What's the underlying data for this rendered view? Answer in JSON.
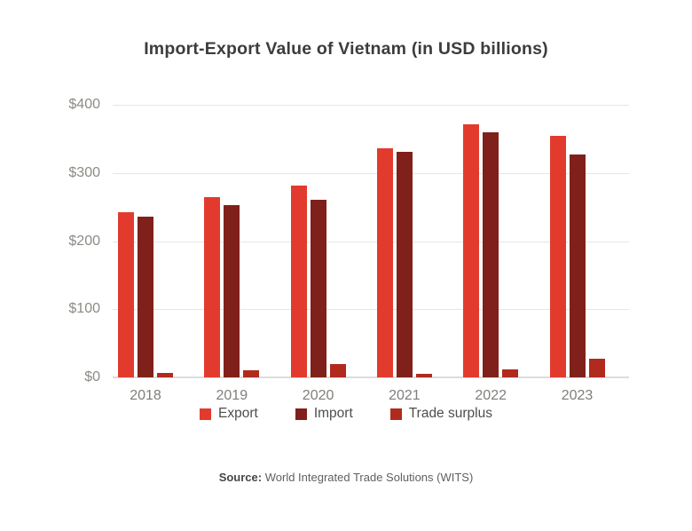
{
  "title": "Import-Export Value of Vietnam (in USD billions)",
  "source": {
    "label": "Source:",
    "text": "World Integrated Trade Solutions (WITS)"
  },
  "styles": {
    "background": "#ffffff",
    "title_color": "#3c3c3e",
    "axis_label_color": "#8b8b85",
    "xlabel_color": "#7e7e7a",
    "legend_text_color": "#4d4d4d",
    "gridline_color": "#e6e6e6",
    "baseline_color": "#dcdcdc"
  },
  "chart_data": {
    "type": "bar",
    "title": "Import-Export Value of Vietnam (in USD billions)",
    "categories": [
      "2018",
      "2019",
      "2020",
      "2021",
      "2022",
      "2023"
    ],
    "series": [
      {
        "name": "Export",
        "color": "#e23b2e",
        "values": [
          243,
          264,
          281,
          336,
          371,
          355
        ]
      },
      {
        "name": "Import",
        "color": "#7f211a",
        "values": [
          236,
          253,
          261,
          331,
          359,
          327
        ]
      },
      {
        "name": "Trade surplus",
        "color": "#b12a1e",
        "values": [
          7,
          11,
          20,
          5,
          12,
          28
        ]
      }
    ],
    "xlabel": "",
    "ylabel": "",
    "ylim": [
      0,
      400
    ],
    "y_ticks": [
      0,
      100,
      200,
      300,
      400
    ],
    "y_tick_labels": [
      "$0",
      "$100",
      "$200",
      "$300",
      "$400"
    ],
    "grid": true,
    "legend_position": "bottom",
    "source": "Source: World Integrated Trade Solutions (WITS)"
  }
}
